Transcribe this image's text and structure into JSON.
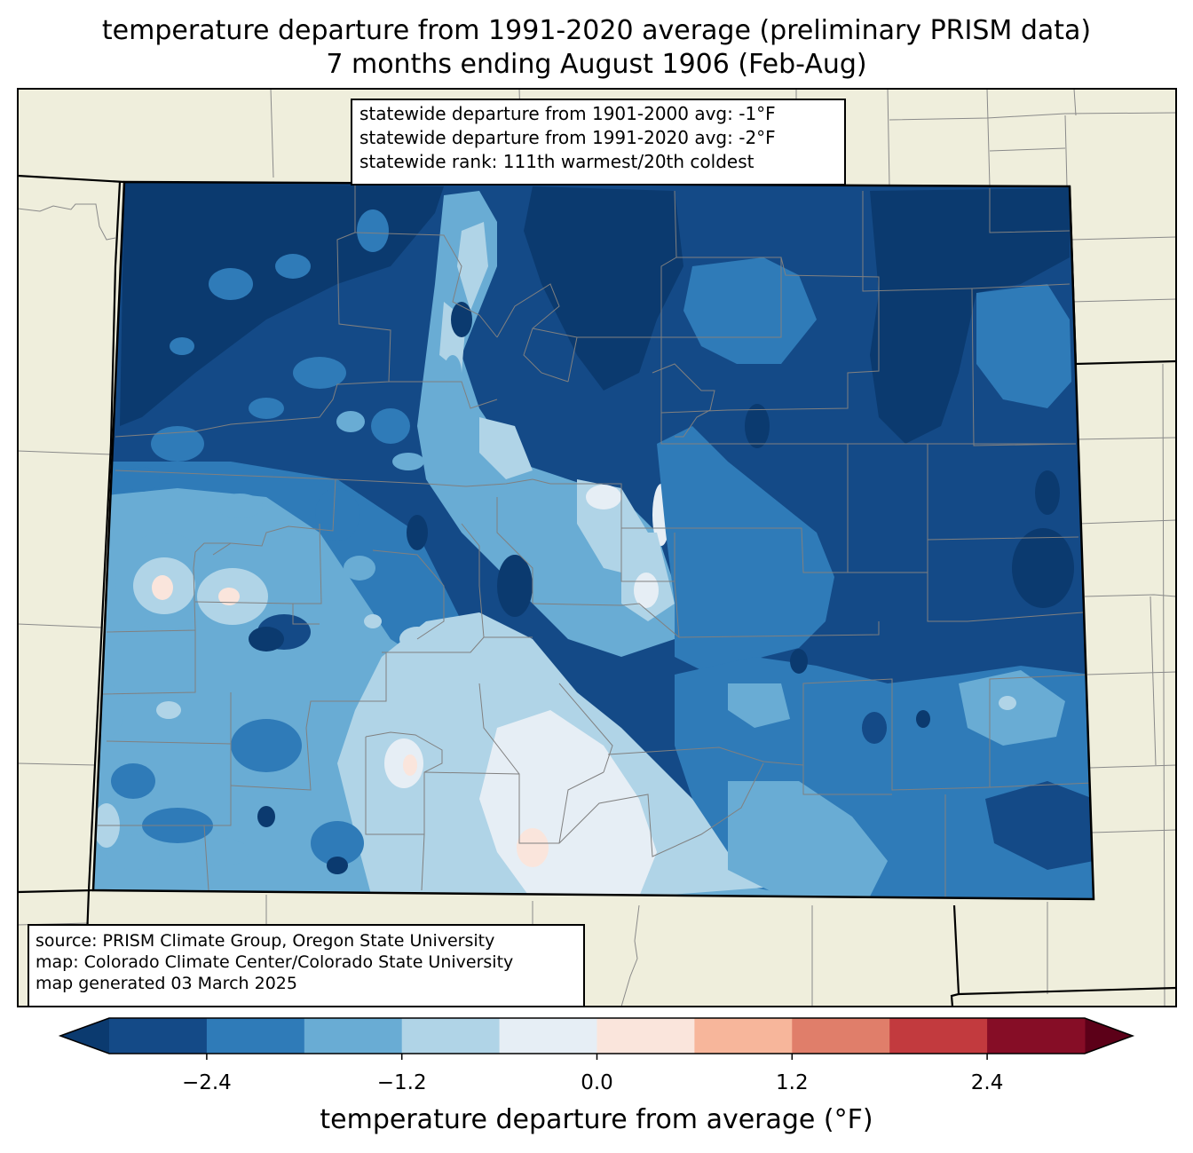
{
  "title": {
    "line1": "temperature departure from 1991-2020 average (preliminary PRISM data)",
    "line2": "7 months ending August 1906 (Feb-Aug)"
  },
  "stats": {
    "line1": "statewide departure from 1901-2000 avg: -1°F",
    "line2": "statewide departure from 1991-2020 avg: -2°F",
    "line3": "statewide rank: 111th warmest/20th coldest"
  },
  "source": {
    "line1": "source: PRISM Climate Group, Oregon State University",
    "line2": "map: Colorado Climate Center/Colorado State University",
    "line3": "map generated 03 March 2025"
  },
  "colorbar": {
    "label": "temperature departure from average (°F)",
    "ticks": [
      "−2.4",
      "−1.2",
      "0.0",
      "1.2",
      "2.4"
    ],
    "tick_values": [
      -2.4,
      -1.2,
      0.0,
      1.2,
      2.4
    ],
    "levels": [
      -3.0,
      -2.4,
      -1.8,
      -1.2,
      -0.6,
      0.0,
      0.6,
      1.2,
      1.8,
      2.4,
      3.0
    ],
    "colors": [
      "#0b3a6f",
      "#144a87",
      "#2f7bb8",
      "#69acd4",
      "#b0d4e7",
      "#e6eef5",
      "#fae5dc",
      "#f7b69b",
      "#e07e6a",
      "#c23a3e",
      "#860d26",
      "#5c0018"
    ]
  },
  "map_colors": {
    "land": "#efeedc",
    "state_border": "#000000",
    "county_border": "#808080"
  }
}
